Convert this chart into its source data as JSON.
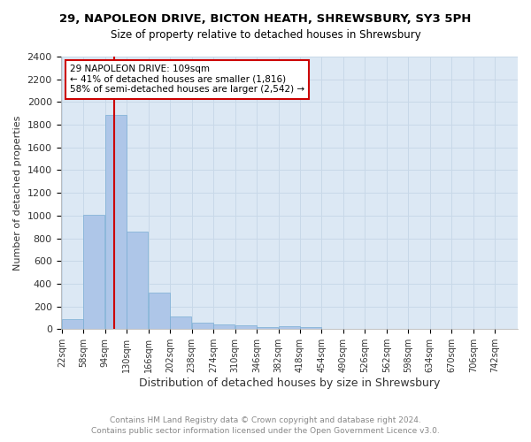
{
  "title": "29, NAPOLEON DRIVE, BICTON HEATH, SHREWSBURY, SY3 5PH",
  "subtitle": "Size of property relative to detached houses in Shrewsbury",
  "xlabel": "Distribution of detached houses by size in Shrewsbury",
  "ylabel": "Number of detached properties",
  "property_size": 109,
  "property_label": "29 NAPOLEON DRIVE: 109sqm",
  "annotation_line1": "← 41% of detached houses are smaller (1,816)",
  "annotation_line2": "58% of semi-detached houses are larger (2,542) →",
  "footer_line1": "Contains HM Land Registry data © Crown copyright and database right 2024.",
  "footer_line2": "Contains public sector information licensed under the Open Government Licence v3.0.",
  "bin_labels": [
    "22sqm",
    "58sqm",
    "94sqm",
    "130sqm",
    "166sqm",
    "202sqm",
    "238sqm",
    "274sqm",
    "310sqm",
    "346sqm",
    "382sqm",
    "418sqm",
    "454sqm",
    "490sqm",
    "526sqm",
    "562sqm",
    "598sqm",
    "634sqm",
    "670sqm",
    "706sqm",
    "742sqm"
  ],
  "bin_edges": [
    22,
    58,
    94,
    130,
    166,
    202,
    238,
    274,
    310,
    346,
    382,
    418,
    454,
    490,
    526,
    562,
    598,
    634,
    670,
    706,
    742
  ],
  "bar_values": [
    90,
    1010,
    1890,
    860,
    320,
    110,
    55,
    45,
    35,
    15,
    25,
    20,
    5,
    2,
    1,
    1,
    0,
    0,
    0,
    0
  ],
  "bar_color": "#aec6e8",
  "bar_edge_color": "#7aaed4",
  "grid_color": "#c8d8e8",
  "bg_color": "#dce8f4",
  "red_line_color": "#cc0000",
  "annotation_box_color": "#cc0000",
  "ylim": [
    0,
    2400
  ],
  "yticks": [
    0,
    200,
    400,
    600,
    800,
    1000,
    1200,
    1400,
    1600,
    1800,
    2000,
    2200,
    2400
  ],
  "bin_width": 36
}
